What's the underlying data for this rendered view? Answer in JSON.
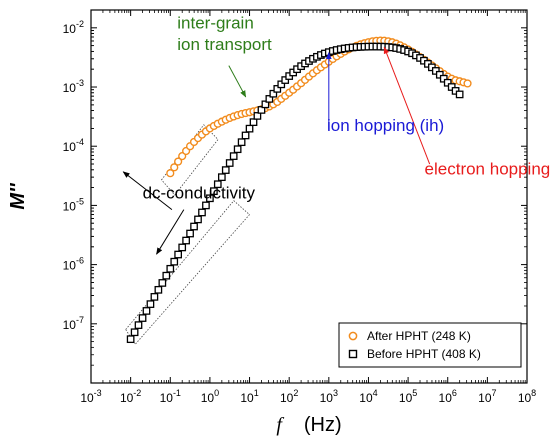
{
  "chart_data": {
    "type": "scatter",
    "x_scale": "log",
    "y_scale": "log",
    "xlim": [
      0.001,
      100000000
    ],
    "ylim": [
      1e-08,
      0.02
    ],
    "x_tick_values": [
      0.001,
      0.01,
      0.1,
      1,
      10,
      100,
      1000,
      10000,
      100000,
      1000000,
      10000000,
      100000000
    ],
    "x_tick_labels": [
      {
        "base": "10",
        "exp": "-3"
      },
      {
        "base": "10",
        "exp": "-2"
      },
      {
        "base": "10",
        "exp": "-1"
      },
      {
        "base": "10",
        "exp": "0"
      },
      {
        "base": "10",
        "exp": "1"
      },
      {
        "base": "10",
        "exp": "2"
      },
      {
        "base": "10",
        "exp": "3"
      },
      {
        "base": "10",
        "exp": "4"
      },
      {
        "base": "10",
        "exp": "5"
      },
      {
        "base": "10",
        "exp": "6"
      },
      {
        "base": "10",
        "exp": "7"
      },
      {
        "base": "10",
        "exp": "8"
      }
    ],
    "y_tick_values": [
      1e-07,
      1e-06,
      1e-05,
      0.0001,
      0.001,
      0.01
    ],
    "y_tick_labels": [
      {
        "base": "10",
        "exp": "-7"
      },
      {
        "base": "10",
        "exp": "-6"
      },
      {
        "base": "10",
        "exp": "-5"
      },
      {
        "base": "10",
        "exp": "-4"
      },
      {
        "base": "10",
        "exp": "-3"
      },
      {
        "base": "10",
        "exp": "-2"
      }
    ],
    "xlabel": {
      "symbol": "f",
      "unit": "(Hz)"
    },
    "ylabel": "M''",
    "legend_position": "bottom-right",
    "series": [
      {
        "name": "After HPHT (248 K)",
        "marker": "circle",
        "color": "#f28c1e",
        "points": [
          [
            0.1,
            3.5e-05
          ],
          [
            0.126,
            4.4e-05
          ],
          [
            0.158,
            5.5e-05
          ],
          [
            0.2,
            6.8e-05
          ],
          [
            0.251,
            8.3e-05
          ],
          [
            0.316,
            0.0001
          ],
          [
            0.398,
            0.000118
          ],
          [
            0.501,
            0.000137
          ],
          [
            0.631,
            0.000157
          ],
          [
            0.794,
            0.000178
          ],
          [
            1,
            0.0002
          ],
          [
            1.26,
            0.00022
          ],
          [
            1.58,
            0.00024
          ],
          [
            2,
            0.00026
          ],
          [
            2.51,
            0.00028
          ],
          [
            3.16,
            0.0003
          ],
          [
            3.98,
            0.000318
          ],
          [
            5.01,
            0.000335
          ],
          [
            6.31,
            0.00035
          ],
          [
            7.94,
            0.000363
          ],
          [
            10,
            0.000375
          ],
          [
            12.6,
            0.000388
          ],
          [
            15.8,
            0.000402
          ],
          [
            20,
            0.00042
          ],
          [
            25.1,
            0.00044
          ],
          [
            31.6,
            0.00047
          ],
          [
            39.8,
            0.00051
          ],
          [
            50.1,
            0.00056
          ],
          [
            63.1,
            0.00063
          ],
          [
            79.4,
            0.00071
          ],
          [
            100,
            0.0008
          ],
          [
            126,
            0.0009
          ],
          [
            158,
            0.00102
          ],
          [
            200,
            0.00116
          ],
          [
            251,
            0.00132
          ],
          [
            316,
            0.0015
          ],
          [
            398,
            0.0017
          ],
          [
            501,
            0.00192
          ],
          [
            631,
            0.00215
          ],
          [
            794,
            0.0024
          ],
          [
            1000,
            0.00268
          ],
          [
            1260,
            0.00298
          ],
          [
            1580,
            0.0033
          ],
          [
            2000,
            0.00363
          ],
          [
            2510,
            0.00398
          ],
          [
            3160,
            0.00433
          ],
          [
            3980,
            0.00466
          ],
          [
            5010,
            0.00497
          ],
          [
            6310,
            0.00525
          ],
          [
            7940,
            0.0055
          ],
          [
            10000,
            0.00572
          ],
          [
            12600,
            0.0059
          ],
          [
            15800,
            0.00602
          ],
          [
            20000,
            0.00608
          ],
          [
            25100,
            0.00605
          ],
          [
            31600,
            0.00592
          ],
          [
            39800,
            0.0057
          ],
          [
            50100,
            0.0054
          ],
          [
            63100,
            0.00505
          ],
          [
            79400,
            0.00468
          ],
          [
            100000,
            0.0043
          ],
          [
            126000,
            0.00392
          ],
          [
            158000,
            0.00355
          ],
          [
            200000,
            0.0032
          ],
          [
            251000,
            0.00288
          ],
          [
            316000,
            0.00258
          ],
          [
            398000,
            0.00231
          ],
          [
            501000,
            0.00207
          ],
          [
            631000,
            0.00185
          ],
          [
            794000,
            0.00166
          ],
          [
            1000000,
            0.0015
          ],
          [
            1260000,
            0.00138
          ],
          [
            1580000,
            0.0013
          ],
          [
            2000000,
            0.00125
          ],
          [
            2510000,
            0.0012
          ],
          [
            3160000,
            0.00115
          ]
        ]
      },
      {
        "name": "Before HPHT (408 K)",
        "marker": "square",
        "color": "#000000",
        "points": [
          [
            0.01,
            5.5e-08
          ],
          [
            0.0126,
            7.2e-08
          ],
          [
            0.0158,
            9.5e-08
          ],
          [
            0.02,
            1.25e-07
          ],
          [
            0.0251,
            1.65e-07
          ],
          [
            0.0316,
            2.15e-07
          ],
          [
            0.0398,
            2.85e-07
          ],
          [
            0.0501,
            3.75e-07
          ],
          [
            0.0631,
            4.9e-07
          ],
          [
            0.0794,
            6.5e-07
          ],
          [
            0.1,
            8.5e-07
          ],
          [
            0.126,
            1.12e-06
          ],
          [
            0.158,
            1.48e-06
          ],
          [
            0.2,
            1.95e-06
          ],
          [
            0.251,
            2.55e-06
          ],
          [
            0.316,
            3.35e-06
          ],
          [
            0.398,
            4.4e-06
          ],
          [
            0.501,
            5.8e-06
          ],
          [
            0.631,
            7.6e-06
          ],
          [
            0.794,
            1e-05
          ],
          [
            1,
            1.32e-05
          ],
          [
            1.26,
            1.74e-05
          ],
          [
            1.58,
            2.28e-05
          ],
          [
            2,
            3e-05
          ],
          [
            2.51,
            3.95e-05
          ],
          [
            3.16,
            5.2e-05
          ],
          [
            3.98,
            6.8e-05
          ],
          [
            5.01,
            8.9e-05
          ],
          [
            6.31,
            0.000117
          ],
          [
            7.94,
            0.000152
          ],
          [
            10,
            0.000198
          ],
          [
            12.6,
            0.000255
          ],
          [
            15.8,
            0.000325
          ],
          [
            20,
            0.00041
          ],
          [
            25.1,
            0.00051
          ],
          [
            31.6,
            0.00063
          ],
          [
            39.8,
            0.00077
          ],
          [
            50.1,
            0.00093
          ],
          [
            63.1,
            0.00111
          ],
          [
            79.4,
            0.00131
          ],
          [
            100,
            0.00153
          ],
          [
            126,
            0.00176
          ],
          [
            158,
            0.002
          ],
          [
            200,
            0.00225
          ],
          [
            251,
            0.0025
          ],
          [
            316,
            0.00275
          ],
          [
            398,
            0.003
          ],
          [
            501,
            0.00324
          ],
          [
            631,
            0.00347
          ],
          [
            794,
            0.00368
          ],
          [
            1000,
            0.00388
          ],
          [
            1260,
            0.00406
          ],
          [
            1580,
            0.00422
          ],
          [
            2000,
            0.00436
          ],
          [
            2510,
            0.00448
          ],
          [
            3160,
            0.00458
          ],
          [
            3980,
            0.00466
          ],
          [
            5010,
            0.00472
          ],
          [
            6310,
            0.00476
          ],
          [
            7940,
            0.00479
          ],
          [
            10000,
            0.00481
          ],
          [
            12600,
            0.00482
          ],
          [
            15800,
            0.00482
          ],
          [
            20000,
            0.00481
          ],
          [
            25100,
            0.00479
          ],
          [
            31600,
            0.00474
          ],
          [
            39800,
            0.00466
          ],
          [
            50100,
            0.00455
          ],
          [
            63100,
            0.0044
          ],
          [
            79400,
            0.00421
          ],
          [
            100000,
            0.00398
          ],
          [
            126000,
            0.00372
          ],
          [
            158000,
            0.00342
          ],
          [
            200000,
            0.0031
          ],
          [
            251000,
            0.00278
          ],
          [
            316000,
            0.00246
          ],
          [
            398000,
            0.00215
          ],
          [
            501000,
            0.00187
          ],
          [
            631000,
            0.00161
          ],
          [
            794000,
            0.00138
          ],
          [
            1000000,
            0.00118
          ],
          [
            1260000,
            0.001
          ],
          [
            1580000,
            0.00086
          ],
          [
            2000000,
            0.00075
          ]
        ]
      }
    ],
    "annotations": [
      {
        "text": "inter-grain",
        "color": "#2e7d1a",
        "x": 0.15,
        "y": 0.0098
      },
      {
        "text": "ion transport",
        "color": "#2e7d1a",
        "x": 0.15,
        "y": 0.0042
      },
      {
        "text": "ion hopping (ih)",
        "color": "#1a1ad6",
        "x": 900,
        "y": 0.00018
      },
      {
        "text": "electron hopping (eh)",
        "color": "#e81c1c",
        "x": 260000,
        "y": 3.3e-05
      },
      {
        "text": "dc-conductivity",
        "color": "#000000",
        "x": 0.02,
        "y": 1.3e-05
      }
    ],
    "arrows": [
      {
        "color": "#2e7d1a",
        "from": [
          3,
          0.0023
        ],
        "to": [
          8,
          0.00068
        ]
      },
      {
        "color": "#1a1ad6",
        "from": [
          1000,
          0.00019
        ],
        "to": [
          1000,
          0.0038
        ]
      },
      {
        "color": "#e81c1c",
        "from": [
          350000,
          5e-05
        ],
        "to": [
          25000,
          0.0047
        ]
      },
      {
        "color": "#000000",
        "from": [
          0.11,
          8.5e-06
        ],
        "to": [
          0.0065,
          3.7e-05
        ]
      },
      {
        "color": "#000000",
        "from": [
          0.22,
          8.5e-06
        ],
        "to": [
          0.045,
          1.5e-06
        ]
      }
    ],
    "dotted_boxes": [
      {
        "corners": [
          [
            0.06,
            2.7e-05
          ],
          [
            0.7,
            0.00023
          ],
          [
            1.6,
            0.00013
          ],
          [
            0.13,
            1.5e-05
          ]
        ]
      },
      {
        "corners": [
          [
            0.0075,
            8e-08
          ],
          [
            4,
            1.2e-05
          ],
          [
            10,
            7e-06
          ],
          [
            0.013,
            4.5e-08
          ]
        ]
      }
    ]
  }
}
